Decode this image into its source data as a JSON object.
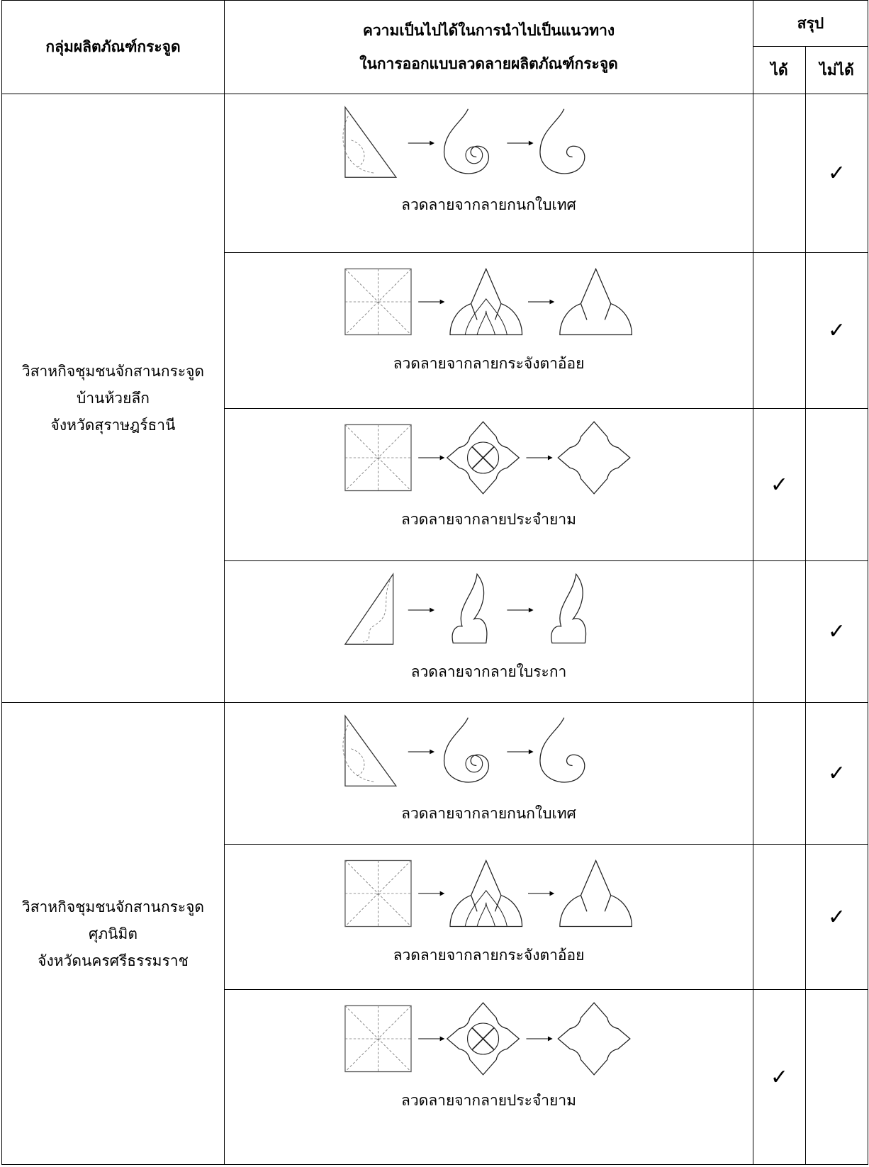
{
  "header": {
    "group": "กลุ่มผลิตภัณฑ์กระจูด",
    "feasibility": [
      "ความเป็นไปได้ในการนำไปเป็นแนวทาง",
      "ในการออกแบบลวดลายผลิตภัณฑ์กระจูด"
    ],
    "summary": "สรุป",
    "yes": "ได้",
    "no": "ไม่ได้"
  },
  "groups": [
    {
      "name": [
        "วิสาหกิจชุมชนจักสานกระจูด",
        "บ้านห้วยลึก",
        "จังหวัดสุราษฎร์ธานี"
      ],
      "patterns": [
        {
          "caption": "ลวดลายจากลายกนกใบเทศ",
          "no": "✓"
        },
        {
          "caption": "ลวดลายจากลายกระจังตาอ้อย",
          "no": "✓"
        },
        {
          "caption": "ลวดลายจากลายประจำยาม",
          "yes": "✓"
        },
        {
          "caption": "ลวดลายจากลายใบระกา",
          "no": "✓"
        }
      ]
    },
    {
      "name": [
        "วิสาหกิจชุมชนจักสานกระจูด",
        "ศุภนิมิต",
        "จังหวัดนครศรีธรรมราช"
      ],
      "patterns": [
        {
          "caption": "ลวดลายจากลายกนกใบเทศ",
          "no": "✓"
        },
        {
          "caption": "ลวดลายจากลายกระจังตาอ้อย",
          "no": "✓"
        },
        {
          "caption": "ลวดลายจากลายประจำยาม",
          "yes": "✓"
        }
      ]
    }
  ]
}
